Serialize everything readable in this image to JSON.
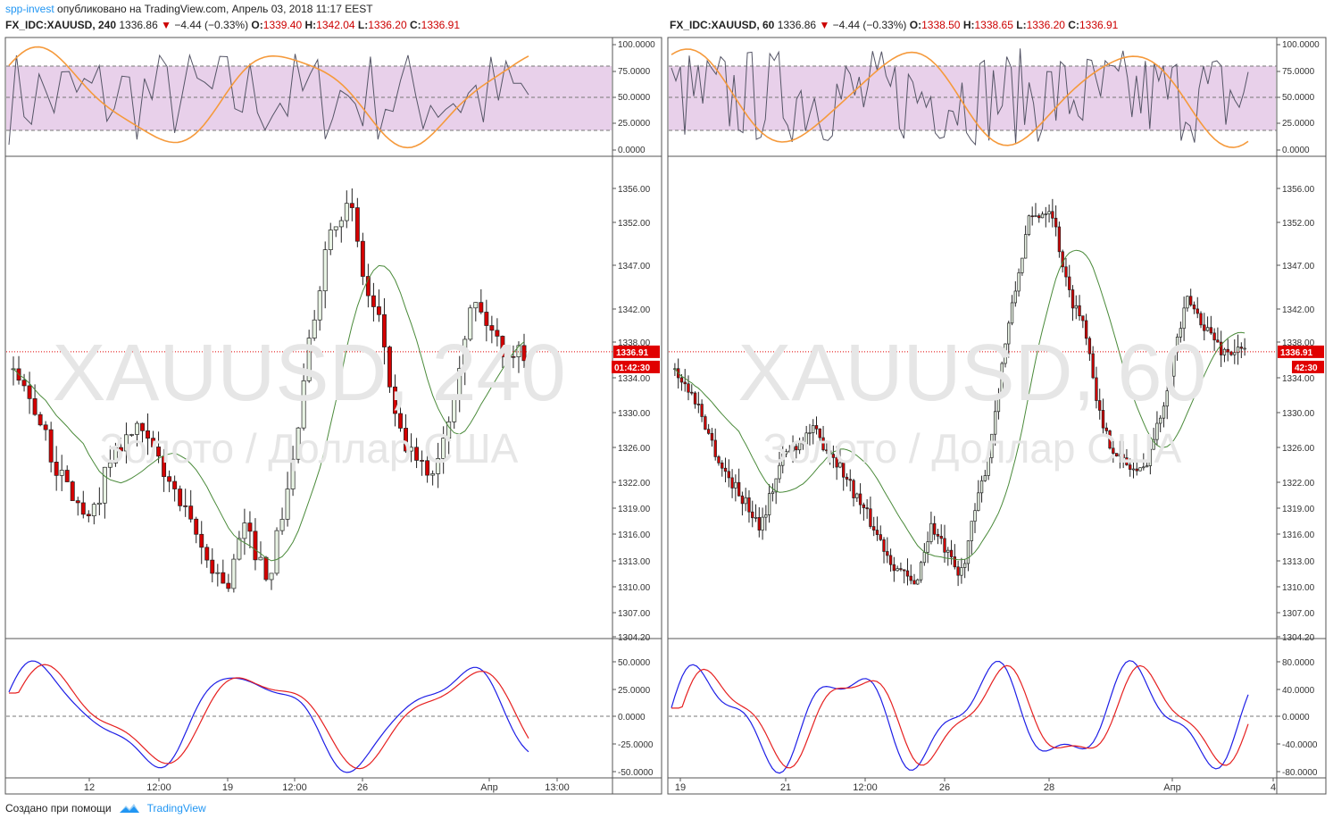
{
  "header": {
    "author": "spp-invest",
    "published": "опубликовано на TradingView.com, Апрель 03, 2018 11:17 EEST"
  },
  "charts": [
    {
      "symbol": "FX_IDC:XAUUSD, 240",
      "price": "1336.86",
      "change": "−4.44 (−0.33%)",
      "o_label": "O:",
      "o": "1339.40",
      "h_label": "H:",
      "h": "1342.04",
      "l_label": "L:",
      "l": "1336.20",
      "c_label": "C:",
      "c": "1336.91",
      "watermark": "XAUUSD, 240",
      "watermark_sub": "Золото / Доллар США",
      "price_tag": "1336.91",
      "time_tag": "01:42:30",
      "top_axis": [
        "100.0000",
        "75.0000",
        "50.0000",
        "25.0000",
        "0.0000"
      ],
      "price_axis": [
        "1356.00",
        "1352.00",
        "1347.00",
        "1342.00",
        "1338.00",
        "1334.00",
        "1330.00",
        "1326.00",
        "1322.00",
        "1319.00",
        "1316.00",
        "1313.00",
        "1310.00",
        "1307.00",
        "1304.20"
      ],
      "bottom_axis": [
        "50.0000",
        "25.0000",
        "0.0000",
        "-25.0000",
        "-50.0000"
      ],
      "time_axis": [
        "12",
        "12:00",
        "19",
        "12:00",
        "26",
        "Апр",
        "13:00"
      ]
    },
    {
      "symbol": "FX_IDC:XAUUSD, 60",
      "price": "1336.86",
      "change": "−4.44 (−0.33%)",
      "o_label": "O:",
      "o": "1338.50",
      "h_label": "H:",
      "h": "1338.65",
      "l_label": "L:",
      "l": "1336.20",
      "c_label": "C:",
      "c": "1336.91",
      "watermark": "XAUUSD, 60",
      "watermark_sub": "Золото / Доллар США",
      "price_tag": "1336.91",
      "time_tag": "42:30",
      "top_axis": [
        "100.0000",
        "75.0000",
        "50.0000",
        "25.0000",
        "0.0000"
      ],
      "price_axis": [
        "1356.00",
        "1352.00",
        "1347.00",
        "1342.00",
        "1338.00",
        "1334.00",
        "1330.00",
        "1326.00",
        "1322.00",
        "1319.00",
        "1316.00",
        "1313.00",
        "1310.00",
        "1307.00",
        "1304.20"
      ],
      "bottom_axis": [
        "80.0000",
        "40.0000",
        "0.0000",
        "-40.0000",
        "-80.0000"
      ],
      "time_axis": [
        "19",
        "21",
        "12:00",
        "26",
        "28",
        "Апр",
        "4"
      ]
    }
  ],
  "footer": {
    "made_with": "Создано при помощи",
    "brand": "TradingView"
  },
  "colors": {
    "up": "#e8f3e4",
    "down": "#d40000",
    "ma": "#4a8a3a",
    "stoch": "#555566",
    "rsi": "#f59a3c",
    "band": "#e4c8e6",
    "macd": "#1e1ee6",
    "signal": "#e62020",
    "price_line": "#e00000"
  }
}
